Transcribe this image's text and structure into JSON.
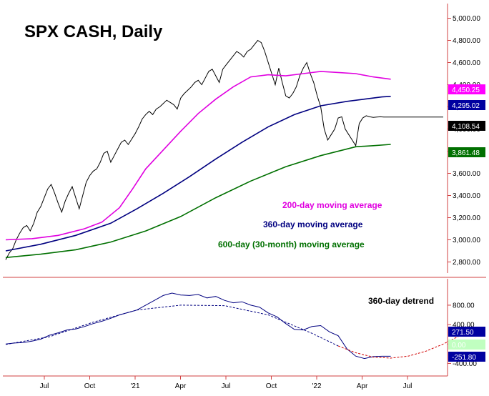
{
  "chart_data": [
    {
      "type": "line",
      "title": "SPX CASH, Daily",
      "x_ticks": [
        "Jul",
        "Oct",
        "'21",
        "Apr",
        "Jul",
        "Oct",
        "'22",
        "Apr",
        "Jul"
      ],
      "y_ticks": [
        "2,800.00",
        "3,000.00",
        "3,200.00",
        "3,400.00",
        "3,600.00",
        "3,800.00",
        "4,000.00",
        "4,200.00",
        "4,400.00",
        "4,600.00",
        "4,800.00",
        "5,000.00"
      ],
      "ylim": [
        2700,
        5100
      ],
      "grid": false,
      "series": [
        {
          "name": "SPX",
          "color": "#000000",
          "x": [
            0,
            4,
            8,
            12,
            16,
            20,
            24,
            28,
            32,
            36,
            40,
            44,
            48,
            52,
            56,
            60,
            64,
            68,
            72,
            76,
            80,
            84,
            88,
            92,
            96,
            100,
            104,
            108,
            112,
            116,
            120,
            124,
            128,
            132,
            136,
            140,
            144,
            148,
            152,
            156,
            160,
            164,
            168,
            172,
            176,
            180,
            184,
            188,
            192,
            196,
            200,
            204,
            208,
            212,
            216,
            220,
            224,
            228,
            232,
            236,
            240,
            244,
            248,
            252,
            256,
            260,
            264,
            268,
            272,
            276,
            280,
            284,
            288,
            292,
            296,
            300,
            304,
            308,
            312,
            316,
            320,
            324,
            328,
            332,
            336,
            340,
            344,
            348,
            352,
            356,
            360,
            364,
            368,
            372,
            376,
            380,
            384,
            388,
            392,
            396,
            400,
            404,
            408,
            412,
            416,
            420,
            424,
            428,
            432,
            436,
            440,
            444,
            448,
            452,
            456,
            460,
            464,
            468,
            472,
            476,
            480,
            484,
            488,
            492,
            496,
            500
          ],
          "values": [
            2820,
            2880,
            2920,
            3000,
            3060,
            3110,
            3130,
            3080,
            3150,
            3250,
            3300,
            3380,
            3460,
            3500,
            3420,
            3330,
            3250,
            3350,
            3420,
            3480,
            3380,
            3280,
            3400,
            3520,
            3580,
            3620,
            3640,
            3700,
            3780,
            3800,
            3700,
            3760,
            3820,
            3880,
            3900,
            3860,
            3910,
            3960,
            4020,
            4090,
            4130,
            4160,
            4130,
            4180,
            4200,
            4230,
            4260,
            4240,
            4220,
            4180,
            4280,
            4320,
            4350,
            4380,
            4420,
            4440,
            4400,
            4460,
            4520,
            4540,
            4480,
            4420,
            4540,
            4580,
            4620,
            4660,
            4700,
            4680,
            4650,
            4700,
            4720,
            4760,
            4800,
            4780,
            4700,
            4600,
            4500,
            4400,
            4550,
            4420,
            4300,
            4280,
            4320,
            4380,
            4480,
            4550,
            4600,
            4500,
            4420,
            4300,
            4200,
            4000,
            3900,
            3950,
            4000,
            4100,
            4110,
            4000,
            3950,
            3900,
            3850,
            4050,
            4100,
            4120,
            4110,
            4105,
            4108,
            4110,
            4108,
            4108,
            4108,
            4108,
            4108,
            4108,
            4108,
            4108,
            4108,
            4108,
            4108,
            4108,
            4108,
            4108,
            4108,
            4108,
            4108,
            4108
          ]
        },
        {
          "name": "200-day moving average",
          "color": "#e000e0",
          "x": [
            0,
            30,
            60,
            90,
            110,
            130,
            145,
            160,
            180,
            200,
            220,
            240,
            260,
            280,
            300,
            320,
            340,
            360,
            380,
            400,
            420,
            440
          ],
          "values": [
            3000,
            3010,
            3040,
            3100,
            3160,
            3290,
            3460,
            3640,
            3810,
            3980,
            4140,
            4270,
            4380,
            4470,
            4490,
            4480,
            4500,
            4520,
            4510,
            4500,
            4470,
            4450
          ]
        },
        {
          "name": "360-day moving average",
          "color": "#000080",
          "x": [
            0,
            40,
            80,
            120,
            150,
            180,
            210,
            240,
            270,
            300,
            330,
            360,
            390,
            410,
            430,
            440
          ],
          "values": [
            2900,
            2960,
            3040,
            3150,
            3280,
            3420,
            3570,
            3730,
            3880,
            4020,
            4130,
            4210,
            4250,
            4270,
            4290,
            4295
          ]
        },
        {
          "name": "600-day (30-month) moving average",
          "color": "#007000",
          "x": [
            0,
            40,
            80,
            120,
            160,
            200,
            240,
            280,
            320,
            360,
            400,
            420,
            440
          ],
          "values": [
            2840,
            2870,
            2910,
            2980,
            3080,
            3210,
            3380,
            3530,
            3660,
            3760,
            3840,
            3850,
            3861
          ]
        }
      ],
      "annotations": [
        {
          "text": "200-day moving average",
          "color": "#e000e0"
        },
        {
          "text": "360-day moving average",
          "color": "#000080"
        },
        {
          "text": "600-day (30-month) moving average",
          "color": "#007000"
        }
      ],
      "last_value_labels": [
        {
          "text": "4,450.25",
          "bg": "#ff00ff"
        },
        {
          "text": "4,295.02",
          "bg": "#0000a0"
        },
        {
          "text": "4,108.54",
          "bg": "#000000"
        },
        {
          "text": "3,861.48",
          "bg": "#007000"
        }
      ]
    },
    {
      "type": "line",
      "x_ticks": [
        "Jul",
        "Oct",
        "'21",
        "Apr",
        "Jul",
        "Oct",
        "'22",
        "Apr",
        "Jul"
      ],
      "y_ticks": [
        "-400.00",
        "0.00",
        "400.00",
        "800.00"
      ],
      "ylim": [
        -600,
        1300
      ],
      "annotations": [
        {
          "text": "360-day detrend",
          "color": "#000000"
        }
      ],
      "last_value_labels": [
        {
          "text": "271.50",
          "bg": "#0000a0"
        },
        {
          "text": "0.00",
          "bg": "#c0ffc0"
        },
        {
          "text": "-251.80",
          "bg": "#0000a0"
        }
      ],
      "series": [
        {
          "name": "360-day detrend",
          "color": "#000080",
          "x": [
            0,
            10,
            20,
            30,
            40,
            50,
            60,
            70,
            80,
            90,
            100,
            110,
            120,
            130,
            140,
            150,
            160,
            170,
            180,
            190,
            200,
            210,
            220,
            230,
            240,
            250,
            260,
            270,
            280,
            290,
            300,
            310,
            320,
            330,
            340,
            350,
            360,
            370,
            380,
            390,
            400,
            410,
            420,
            430,
            440
          ],
          "values": [
            0,
            20,
            30,
            60,
            100,
            180,
            230,
            290,
            310,
            360,
            420,
            470,
            530,
            600,
            650,
            700,
            800,
            900,
            1000,
            1050,
            1010,
            1000,
            1020,
            950,
            980,
            900,
            850,
            870,
            800,
            760,
            640,
            560,
            420,
            300,
            290,
            360,
            380,
            250,
            170,
            -100,
            -250,
            -300,
            -260,
            -251.8,
            -251.8
          ]
        },
        {
          "name": "trend",
          "color": "#000080",
          "x": [
            0,
            50,
            100,
            150,
            200,
            250,
            300,
            350,
            380
          ],
          "values": [
            -10,
            150,
            450,
            700,
            800,
            790,
            600,
            220,
            -40
          ]
        },
        {
          "name": "projection",
          "color": "#d00000",
          "x": [
            380,
            400,
            420,
            440,
            460,
            480,
            500,
            520
          ],
          "values": [
            -40,
            -180,
            -270,
            -290,
            -250,
            -150,
            0,
            180
          ]
        }
      ]
    }
  ]
}
